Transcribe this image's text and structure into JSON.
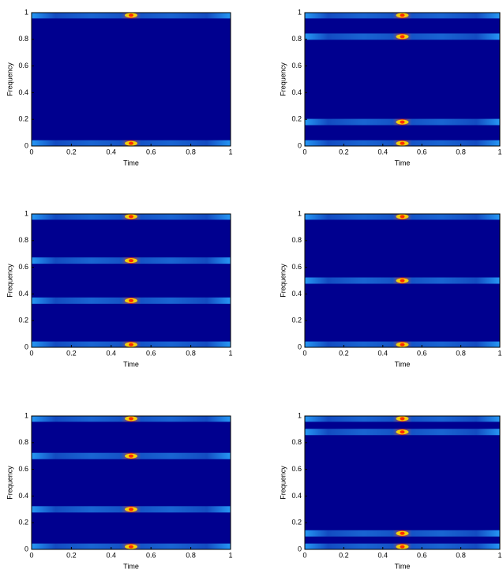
{
  "chart_data": [
    {
      "type": "heatmap",
      "xlabel": "Time",
      "ylabel": "Frequency",
      "xlim": [
        0,
        1
      ],
      "ylim": [
        0,
        1
      ],
      "xticks": [
        0,
        0.2,
        0.4,
        0.6,
        0.8,
        1
      ],
      "yticks": [
        0,
        0.2,
        0.4,
        0.6,
        0.8,
        1
      ],
      "bands": [
        0.02,
        0.98
      ],
      "background": "#00008f",
      "band_color": "#2aa8ff",
      "peak_color": "#ff2a00"
    },
    {
      "type": "heatmap",
      "xlabel": "Time",
      "ylabel": "Frequency",
      "xlim": [
        0,
        1
      ],
      "ylim": [
        0,
        1
      ],
      "xticks": [
        0,
        0.2,
        0.4,
        0.6,
        0.8,
        1
      ],
      "yticks": [
        0,
        0.2,
        0.4,
        0.6,
        0.8,
        1
      ],
      "bands": [
        0.02,
        0.18,
        0.82,
        0.98
      ],
      "background": "#00008f",
      "band_color": "#2aa8ff",
      "peak_color": "#ff2a00"
    },
    {
      "type": "heatmap",
      "xlabel": "Time",
      "ylabel": "Frequency",
      "xlim": [
        0,
        1
      ],
      "ylim": [
        0,
        1
      ],
      "xticks": [
        0,
        0.2,
        0.4,
        0.6,
        0.8,
        1
      ],
      "yticks": [
        0,
        0.2,
        0.4,
        0.6,
        0.8,
        1
      ],
      "bands": [
        0.02,
        0.35,
        0.65,
        0.98
      ],
      "background": "#00008f",
      "band_color": "#2aa8ff",
      "peak_color": "#ff2a00"
    },
    {
      "type": "heatmap",
      "xlabel": "Time",
      "ylabel": "Frequency",
      "xlim": [
        0,
        1
      ],
      "ylim": [
        0,
        1
      ],
      "xticks": [
        0,
        0.2,
        0.4,
        0.6,
        0.8,
        1
      ],
      "yticks": [
        0,
        0.2,
        0.4,
        0.6,
        0.8,
        1
      ],
      "bands": [
        0.02,
        0.5,
        0.98
      ],
      "background": "#00008f",
      "band_color": "#2aa8ff",
      "peak_color": "#ff2a00"
    },
    {
      "type": "heatmap",
      "xlabel": "Time",
      "ylabel": "Frequency",
      "xlim": [
        0,
        1
      ],
      "ylim": [
        0,
        1
      ],
      "xticks": [
        0,
        0.2,
        0.4,
        0.6,
        0.8,
        1
      ],
      "yticks": [
        0,
        0.2,
        0.4,
        0.6,
        0.8,
        1
      ],
      "bands": [
        0.02,
        0.3,
        0.7,
        0.98
      ],
      "background": "#00008f",
      "band_color": "#2aa8ff",
      "peak_color": "#ff2a00"
    },
    {
      "type": "heatmap",
      "xlabel": "Time",
      "ylabel": "Frequency",
      "xlim": [
        0,
        1
      ],
      "ylim": [
        0,
        1
      ],
      "xticks": [
        0,
        0.2,
        0.4,
        0.6,
        0.8,
        1
      ],
      "yticks": [
        0,
        0.2,
        0.4,
        0.6,
        0.8,
        1
      ],
      "bands": [
        0.02,
        0.12,
        0.88,
        0.98
      ],
      "background": "#00008f",
      "band_color": "#2aa8ff",
      "peak_color": "#ff2a00"
    }
  ]
}
